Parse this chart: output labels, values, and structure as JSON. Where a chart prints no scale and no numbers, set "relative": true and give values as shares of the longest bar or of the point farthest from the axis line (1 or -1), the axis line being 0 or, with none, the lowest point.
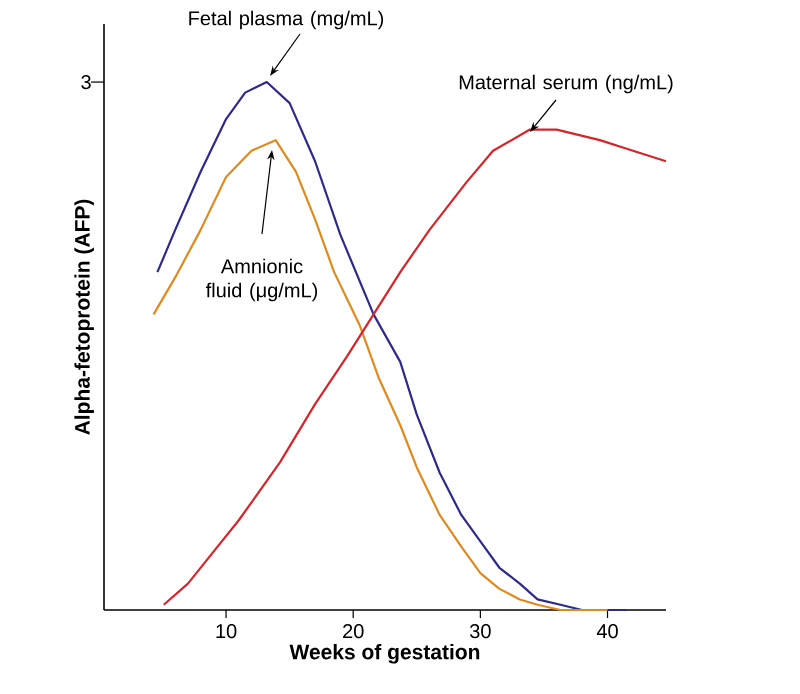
{
  "chart_data": {
    "type": "line",
    "xlabel": "Weeks of gestation",
    "ylabel": "Alpha-fetoprotein (AFP)",
    "relative": true,
    "xlim": [
      0.4,
      44.6
    ],
    "xticks": [
      10,
      20,
      30,
      40
    ],
    "marker": "none",
    "line_style": "solid",
    "annotations": [
      "3"
    ],
    "series": [
      {
        "name": "Fetal plasma (mg/mL)",
        "color": "#2e2a8c",
        "x": [
          4.6,
          6,
          8,
          10,
          11.5,
          13.2,
          15,
          17,
          19,
          21.6,
          23.7,
          25,
          26.8,
          28.5,
          30,
          31.5,
          33.1,
          34.5,
          36.3,
          38,
          41.5
        ],
        "values": [
          0.64,
          0.72,
          0.83,
          0.93,
          0.98,
          1,
          0.96,
          0.85,
          0.71,
          0.56,
          0.47,
          0.37,
          0.26,
          0.18,
          0.13,
          0.08,
          0.05,
          0.02,
          0.01,
          0,
          0
        ]
      },
      {
        "name": "Amnionic fluid (μg/mL)",
        "color": "#e08a1e",
        "x": [
          4.3,
          6,
          8,
          10,
          12,
          13.9,
          15.5,
          17,
          18.5,
          20.5,
          22,
          23.7,
          25,
          26.8,
          28.5,
          30,
          31.5,
          33.1,
          34.5,
          36.3,
          40
        ],
        "values": [
          0.56,
          0.63,
          0.72,
          0.82,
          0.87,
          0.89,
          0.83,
          0.74,
          0.64,
          0.54,
          0.44,
          0.35,
          0.27,
          0.18,
          0.12,
          0.07,
          0.04,
          0.02,
          0.01,
          0,
          0
        ]
      },
      {
        "name": "Maternal serum (ng/mL)",
        "color": "#d8232a",
        "x": [
          5.1,
          7,
          9,
          11,
          14.25,
          17,
          19.5,
          21.6,
          23.7,
          26,
          28.9,
          31,
          33.9,
          36,
          39.4,
          42,
          44.6
        ],
        "values": [
          0.01,
          0.05,
          0.11,
          0.17,
          0.28,
          0.39,
          0.48,
          0.56,
          0.64,
          0.72,
          0.81,
          0.87,
          0.91,
          0.91,
          0.89,
          0.87,
          0.85
        ]
      }
    ]
  }
}
